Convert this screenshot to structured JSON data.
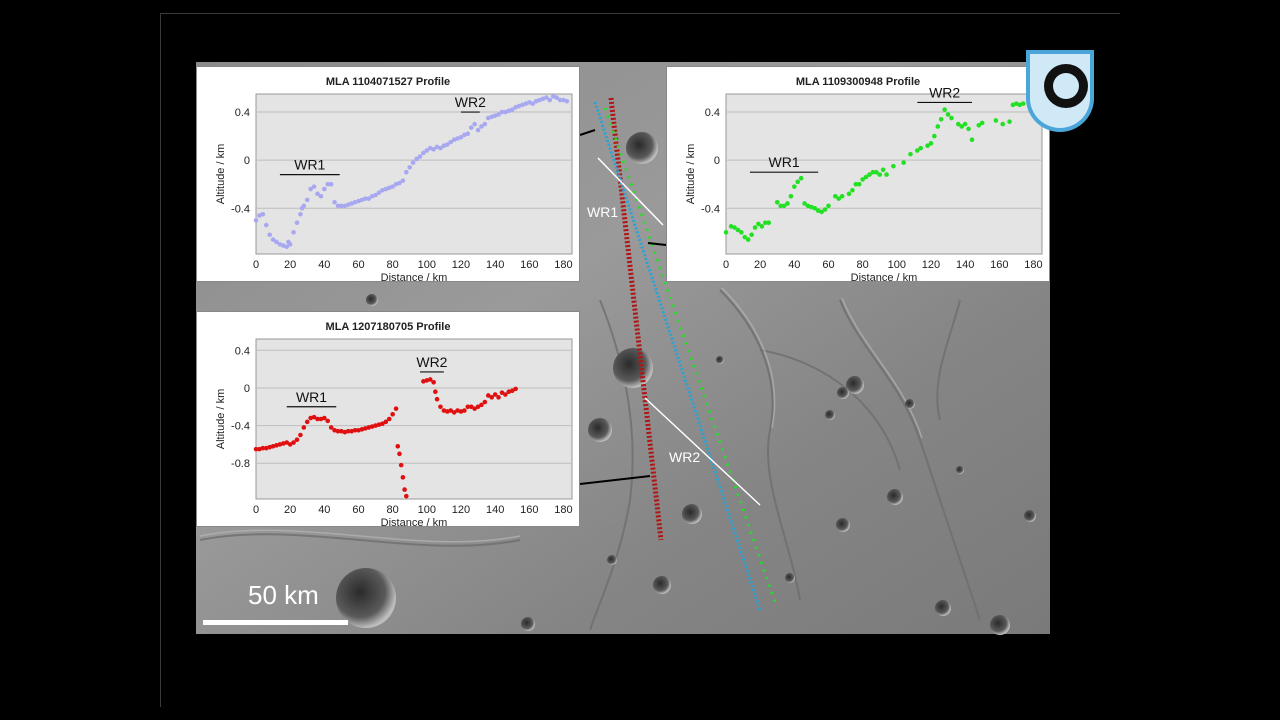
{
  "scale_bar": {
    "label": "50 km"
  },
  "map_labels": {
    "wr1": "WR1",
    "wr2": "WR2"
  },
  "colors": {
    "blue_track": "#a8a8f0",
    "green_track": "#22e022",
    "red_track": "#e01010",
    "cyan_track": "#27a3d8",
    "darkred_track": "#b01515",
    "logo": "#4aa6d8"
  },
  "logo": {
    "icon": "university-logo-icon"
  },
  "chart_data": [
    {
      "type": "scatter",
      "title": "MLA 1104071527 Profile",
      "xlabel": "Distance / km",
      "ylabel": "Altitude / km",
      "xlim": [
        0,
        185
      ],
      "ylim": [
        -0.78,
        0.55
      ],
      "xticks": [
        0,
        20,
        40,
        60,
        80,
        100,
        120,
        140,
        160,
        180
      ],
      "yticks": [
        {
          "v": 0.4,
          "t": "0.4"
        },
        {
          "v": 0,
          "t": "0"
        },
        {
          "v": -0.4,
          "t": "-0.4"
        }
      ],
      "grid": true,
      "series": [
        {
          "color": "#a8a8f0",
          "points": [
            [
              0,
              -0.5
            ],
            [
              2,
              -0.46
            ],
            [
              4,
              -0.45
            ],
            [
              6,
              -0.54
            ],
            [
              8,
              -0.62
            ],
            [
              10,
              -0.66
            ],
            [
              12,
              -0.68
            ],
            [
              14,
              -0.7
            ],
            [
              16,
              -0.71
            ],
            [
              18,
              -0.72
            ],
            [
              19,
              -0.68
            ],
            [
              20,
              -0.7
            ],
            [
              22,
              -0.6
            ],
            [
              24,
              -0.52
            ],
            [
              26,
              -0.45
            ],
            [
              27,
              -0.4
            ],
            [
              28,
              -0.38
            ],
            [
              30,
              -0.33
            ],
            [
              32,
              -0.24
            ],
            [
              34,
              -0.22
            ],
            [
              36,
              -0.28
            ],
            [
              38,
              -0.3
            ],
            [
              40,
              -0.24
            ],
            [
              42,
              -0.2
            ],
            [
              44,
              -0.2
            ],
            [
              46,
              -0.35
            ],
            [
              48,
              -0.38
            ],
            [
              50,
              -0.38
            ],
            [
              52,
              -0.38
            ],
            [
              54,
              -0.37
            ],
            [
              56,
              -0.36
            ],
            [
              58,
              -0.35
            ],
            [
              60,
              -0.34
            ],
            [
              62,
              -0.33
            ],
            [
              64,
              -0.32
            ],
            [
              66,
              -0.32
            ],
            [
              68,
              -0.3
            ],
            [
              70,
              -0.29
            ],
            [
              72,
              -0.27
            ],
            [
              74,
              -0.25
            ],
            [
              76,
              -0.24
            ],
            [
              78,
              -0.23
            ],
            [
              80,
              -0.22
            ],
            [
              82,
              -0.2
            ],
            [
              84,
              -0.19
            ],
            [
              86,
              -0.17
            ],
            [
              88,
              -0.1
            ],
            [
              90,
              -0.06
            ],
            [
              92,
              -0.02
            ],
            [
              94,
              0.01
            ],
            [
              96,
              0.03
            ],
            [
              98,
              0.06
            ],
            [
              100,
              0.08
            ],
            [
              102,
              0.1
            ],
            [
              104,
              0.09
            ],
            [
              106,
              0.11
            ],
            [
              108,
              0.1
            ],
            [
              110,
              0.12
            ],
            [
              112,
              0.13
            ],
            [
              114,
              0.15
            ],
            [
              116,
              0.17
            ],
            [
              118,
              0.18
            ],
            [
              120,
              0.19
            ],
            [
              122,
              0.21
            ],
            [
              124,
              0.22
            ],
            [
              126,
              0.27
            ],
            [
              128,
              0.3
            ],
            [
              130,
              0.25
            ],
            [
              132,
              0.28
            ],
            [
              134,
              0.3
            ],
            [
              136,
              0.35
            ],
            [
              138,
              0.36
            ],
            [
              140,
              0.37
            ],
            [
              142,
              0.38
            ],
            [
              144,
              0.4
            ],
            [
              146,
              0.4
            ],
            [
              148,
              0.41
            ],
            [
              150,
              0.42
            ],
            [
              152,
              0.44
            ],
            [
              154,
              0.45
            ],
            [
              156,
              0.46
            ],
            [
              158,
              0.47
            ],
            [
              160,
              0.48
            ],
            [
              162,
              0.47
            ],
            [
              164,
              0.49
            ],
            [
              166,
              0.5
            ],
            [
              168,
              0.51
            ],
            [
              170,
              0.52
            ],
            [
              172,
              0.5
            ],
            [
              174,
              0.53
            ],
            [
              176,
              0.52
            ],
            [
              178,
              0.5
            ],
            [
              180,
              0.5
            ],
            [
              182,
              0.49
            ]
          ]
        }
      ],
      "annotations": [
        {
          "text": "WR1",
          "x1": 14,
          "x2": 49,
          "y": -0.12
        },
        {
          "text": "WR2",
          "x1": 120,
          "x2": 131,
          "y": 0.4
        }
      ]
    },
    {
      "type": "scatter",
      "title": "MLA 1109300948 Profile",
      "xlabel": "Distance / km",
      "ylabel": "Altitude / km",
      "xlim": [
        0,
        185
      ],
      "ylim": [
        -0.78,
        0.55
      ],
      "xticks": [
        0,
        20,
        40,
        60,
        80,
        100,
        120,
        140,
        160,
        180
      ],
      "yticks": [
        {
          "v": 0.4,
          "t": "0.4"
        },
        {
          "v": 0,
          "t": "0"
        },
        {
          "v": -0.4,
          "t": "-0.4"
        }
      ],
      "grid": true,
      "series": [
        {
          "color": "#22e022",
          "points": [
            [
              0,
              -0.6
            ],
            [
              3,
              -0.55
            ],
            [
              5,
              -0.56
            ],
            [
              7,
              -0.58
            ],
            [
              9,
              -0.6
            ],
            [
              11,
              -0.64
            ],
            [
              13,
              -0.66
            ],
            [
              15,
              -0.62
            ],
            [
              17,
              -0.56
            ],
            [
              19,
              -0.53
            ],
            [
              21,
              -0.55
            ],
            [
              23,
              -0.52
            ],
            [
              25,
              -0.52
            ],
            [
              30,
              -0.35
            ],
            [
              32,
              -0.38
            ],
            [
              34,
              -0.38
            ],
            [
              36,
              -0.36
            ],
            [
              38,
              -0.3
            ],
            [
              40,
              -0.22
            ],
            [
              42,
              -0.18
            ],
            [
              44,
              -0.15
            ],
            [
              46,
              -0.36
            ],
            [
              48,
              -0.38
            ],
            [
              50,
              -0.39
            ],
            [
              52,
              -0.4
            ],
            [
              54,
              -0.42
            ],
            [
              56,
              -0.43
            ],
            [
              58,
              -0.41
            ],
            [
              60,
              -0.38
            ],
            [
              64,
              -0.3
            ],
            [
              66,
              -0.32
            ],
            [
              68,
              -0.3
            ],
            [
              72,
              -0.28
            ],
            [
              74,
              -0.25
            ],
            [
              76,
              -0.2
            ],
            [
              78,
              -0.2
            ],
            [
              80,
              -0.16
            ],
            [
              82,
              -0.14
            ],
            [
              84,
              -0.12
            ],
            [
              86,
              -0.1
            ],
            [
              88,
              -0.1
            ],
            [
              90,
              -0.12
            ],
            [
              92,
              -0.08
            ],
            [
              94,
              -0.12
            ],
            [
              98,
              -0.05
            ],
            [
              104,
              -0.02
            ],
            [
              108,
              0.05
            ],
            [
              112,
              0.08
            ],
            [
              114,
              0.1
            ],
            [
              118,
              0.12
            ],
            [
              120,
              0.14
            ],
            [
              122,
              0.2
            ],
            [
              124,
              0.28
            ],
            [
              126,
              0.34
            ],
            [
              128,
              0.42
            ],
            [
              130,
              0.38
            ],
            [
              132,
              0.35
            ],
            [
              136,
              0.3
            ],
            [
              138,
              0.28
            ],
            [
              140,
              0.3
            ],
            [
              142,
              0.26
            ],
            [
              144,
              0.17
            ],
            [
              148,
              0.29
            ],
            [
              150,
              0.31
            ],
            [
              158,
              0.33
            ],
            [
              162,
              0.3
            ],
            [
              166,
              0.32
            ],
            [
              168,
              0.46
            ],
            [
              170,
              0.47
            ],
            [
              172,
              0.46
            ],
            [
              174,
              0.47
            ],
            [
              180,
              0.42
            ]
          ]
        }
      ],
      "annotations": [
        {
          "text": "WR1",
          "x1": 14,
          "x2": 54,
          "y": -0.1
        },
        {
          "text": "WR2",
          "x1": 112,
          "x2": 144,
          "y": 0.48
        }
      ]
    },
    {
      "type": "scatter",
      "title": "MLA 1207180705 Profile",
      "xlabel": "Distance / km",
      "ylabel": "Altitude / km",
      "xlim": [
        0,
        185
      ],
      "ylim": [
        -1.18,
        0.52
      ],
      "xticks": [
        0,
        20,
        40,
        60,
        80,
        100,
        120,
        140,
        160,
        180
      ],
      "yticks": [
        {
          "v": 0.4,
          "t": "0.4"
        },
        {
          "v": 0,
          "t": "0"
        },
        {
          "v": -0.4,
          "t": "-0.4"
        },
        {
          "v": -0.8,
          "t": "-0.8"
        }
      ],
      "grid": true,
      "series": [
        {
          "color": "#e01010",
          "points": [
            [
              0,
              -0.65
            ],
            [
              2,
              -0.65
            ],
            [
              4,
              -0.64
            ],
            [
              6,
              -0.64
            ],
            [
              8,
              -0.63
            ],
            [
              10,
              -0.62
            ],
            [
              12,
              -0.61
            ],
            [
              14,
              -0.6
            ],
            [
              16,
              -0.59
            ],
            [
              18,
              -0.58
            ],
            [
              20,
              -0.6
            ],
            [
              22,
              -0.58
            ],
            [
              24,
              -0.55
            ],
            [
              26,
              -0.5
            ],
            [
              28,
              -0.42
            ],
            [
              30,
              -0.36
            ],
            [
              32,
              -0.32
            ],
            [
              34,
              -0.31
            ],
            [
              36,
              -0.33
            ],
            [
              38,
              -0.33
            ],
            [
              40,
              -0.32
            ],
            [
              42,
              -0.35
            ],
            [
              44,
              -0.42
            ],
            [
              46,
              -0.45
            ],
            [
              48,
              -0.46
            ],
            [
              50,
              -0.46
            ],
            [
              52,
              -0.47
            ],
            [
              54,
              -0.46
            ],
            [
              56,
              -0.46
            ],
            [
              58,
              -0.45
            ],
            [
              60,
              -0.45
            ],
            [
              62,
              -0.44
            ],
            [
              64,
              -0.43
            ],
            [
              66,
              -0.42
            ],
            [
              68,
              -0.41
            ],
            [
              70,
              -0.4
            ],
            [
              72,
              -0.39
            ],
            [
              74,
              -0.38
            ],
            [
              76,
              -0.36
            ],
            [
              78,
              -0.33
            ],
            [
              80,
              -0.28
            ],
            [
              82,
              -0.22
            ],
            [
              83,
              -0.62
            ],
            [
              84,
              -0.7
            ],
            [
              85,
              -0.82
            ],
            [
              86,
              -0.95
            ],
            [
              87,
              -1.08
            ],
            [
              88,
              -1.15
            ],
            [
              98,
              0.07
            ],
            [
              100,
              0.08
            ],
            [
              102,
              0.09
            ],
            [
              104,
              0.06
            ],
            [
              105,
              -0.04
            ],
            [
              106,
              -0.12
            ],
            [
              108,
              -0.2
            ],
            [
              110,
              -0.24
            ],
            [
              112,
              -0.25
            ],
            [
              114,
              -0.24
            ],
            [
              116,
              -0.26
            ],
            [
              118,
              -0.24
            ],
            [
              120,
              -0.25
            ],
            [
              122,
              -0.24
            ],
            [
              124,
              -0.2
            ],
            [
              126,
              -0.2
            ],
            [
              128,
              -0.22
            ],
            [
              130,
              -0.2
            ],
            [
              132,
              -0.18
            ],
            [
              134,
              -0.15
            ],
            [
              136,
              -0.08
            ],
            [
              138,
              -0.1
            ],
            [
              140,
              -0.07
            ],
            [
              142,
              -0.1
            ],
            [
              144,
              -0.05
            ],
            [
              146,
              -0.07
            ],
            [
              148,
              -0.04
            ],
            [
              150,
              -0.03
            ],
            [
              152,
              -0.01
            ]
          ]
        }
      ],
      "annotations": [
        {
          "text": "WR1",
          "x1": 18,
          "x2": 47,
          "y": -0.2
        },
        {
          "text": "WR2",
          "x1": 96,
          "x2": 110,
          "y": 0.17
        }
      ]
    }
  ]
}
